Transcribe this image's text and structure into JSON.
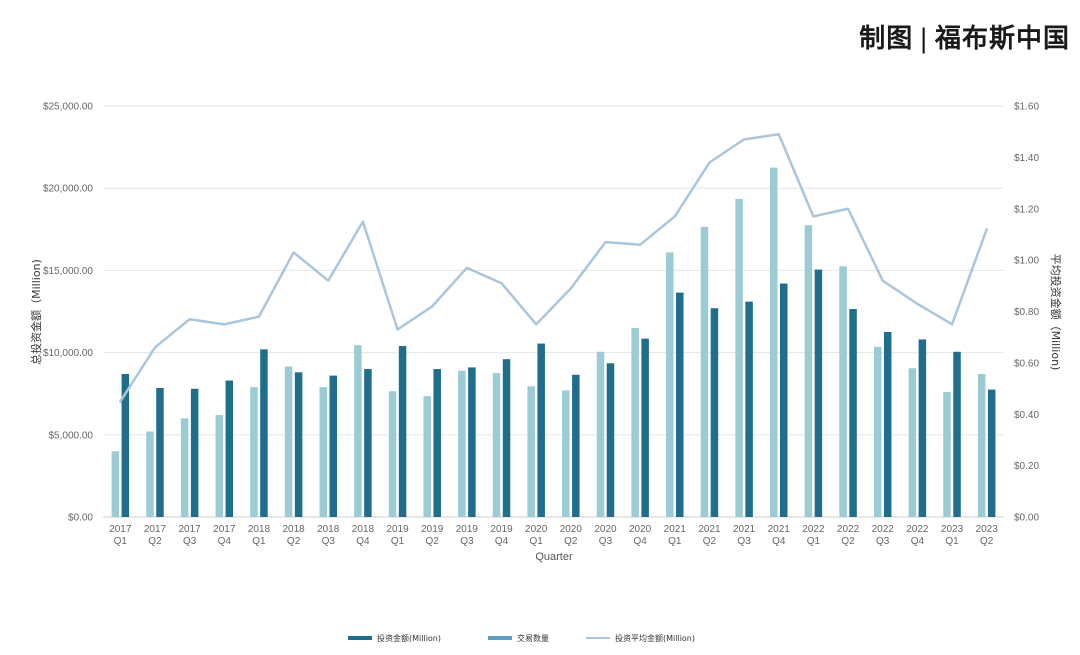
{
  "header": {
    "credit_left": "制图",
    "credit_sep": "|",
    "credit_right": "福布斯中国"
  },
  "chart_data": {
    "type": "bar",
    "xlabel": "Quarter",
    "ylabel_left": "总投资金额（Million)",
    "ylabel_right": "平均投资金额（Million)",
    "y_left_lim": [
      0,
      25000
    ],
    "y_left_ticks": [
      "$0.00",
      "$5,000.00",
      "$10,000.00",
      "$15,000.00",
      "$20,000.00",
      "$25,000.00"
    ],
    "y_right_lim": [
      0,
      1.6
    ],
    "y_right_ticks": [
      "$0.00",
      "$0.20",
      "$0.40",
      "$0.60",
      "$0.80",
      "$1.00",
      "$1.20",
      "$1.40",
      "$1.60"
    ],
    "grid": true,
    "legend_position": "bottom",
    "categories": [
      [
        "2017",
        "Q1"
      ],
      [
        "2017",
        "Q2"
      ],
      [
        "2017",
        "Q3"
      ],
      [
        "2017",
        "Q4"
      ],
      [
        "2018",
        "Q1"
      ],
      [
        "2018",
        "Q2"
      ],
      [
        "2018",
        "Q3"
      ],
      [
        "2018",
        "Q4"
      ],
      [
        "2019",
        "Q1"
      ],
      [
        "2019",
        "Q2"
      ],
      [
        "2019",
        "Q3"
      ],
      [
        "2019",
        "Q4"
      ],
      [
        "2020",
        "Q1"
      ],
      [
        "2020",
        "Q2"
      ],
      [
        "2020",
        "Q3"
      ],
      [
        "2020",
        "Q4"
      ],
      [
        "2021",
        "Q1"
      ],
      [
        "2021",
        "Q2"
      ],
      [
        "2021",
        "Q3"
      ],
      [
        "2021",
        "Q4"
      ],
      [
        "2022",
        "Q1"
      ],
      [
        "2022",
        "Q2"
      ],
      [
        "2022",
        "Q3"
      ],
      [
        "2022",
        "Q4"
      ],
      [
        "2023",
        "Q1"
      ],
      [
        "2023",
        "Q2"
      ]
    ],
    "series": [
      {
        "name": "交易数量",
        "kind": "bar",
        "axis": "left",
        "color": "#9ccbd6",
        "values": [
          4000,
          5200,
          6000,
          6200,
          7900,
          9150,
          7900,
          10450,
          7650,
          7350,
          8900,
          8750,
          7950,
          7700,
          10050,
          11500,
          16100,
          17650,
          19350,
          21250,
          17750,
          15250,
          10350,
          9050,
          7600,
          8700
        ]
      },
      {
        "name": "投资金额(Million)",
        "kind": "bar",
        "axis": "left",
        "color": "#1f6e8c",
        "values": [
          8700,
          7850,
          7800,
          8300,
          10200,
          8800,
          8600,
          9000,
          10400,
          9000,
          9100,
          9600,
          10550,
          8650,
          9350,
          10850,
          13650,
          12700,
          13100,
          14200,
          15050,
          12650,
          11250,
          10800,
          10050,
          7750
        ]
      },
      {
        "name": "投资平均金额(Million)",
        "kind": "line",
        "axis": "right",
        "color": "#a9c6de",
        "values": [
          0.45,
          0.66,
          0.77,
          0.75,
          0.78,
          1.03,
          0.92,
          1.15,
          0.73,
          0.82,
          0.97,
          0.91,
          0.75,
          0.89,
          1.07,
          1.06,
          1.17,
          1.38,
          1.47,
          1.49,
          1.17,
          1.2,
          0.92,
          0.83,
          0.75,
          1.12
        ]
      }
    ],
    "legend": [
      {
        "label": "投资金额(Million)",
        "color": "#1f6e8c",
        "shape": "bar"
      },
      {
        "label": "交易数量",
        "color": "#5e9ec4",
        "shape": "bar"
      },
      {
        "label": "投资平均金额(Million)",
        "color": "#a9c6de",
        "shape": "line"
      }
    ]
  }
}
